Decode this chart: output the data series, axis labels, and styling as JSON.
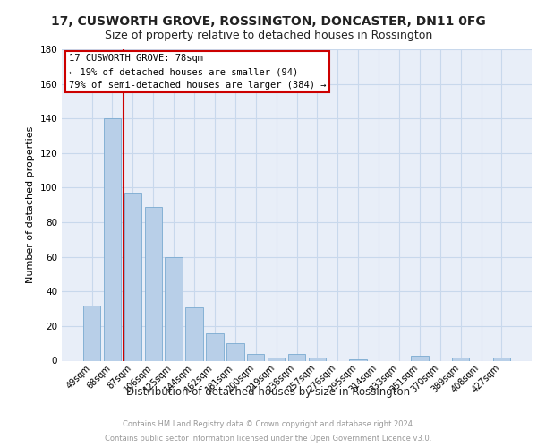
{
  "title": "17, CUSWORTH GROVE, ROSSINGTON, DONCASTER, DN11 0FG",
  "subtitle": "Size of property relative to detached houses in Rossington",
  "xlabel": "Distribution of detached houses by size in Rossington",
  "ylabel": "Number of detached properties",
  "footer_line1": "Contains HM Land Registry data © Crown copyright and database right 2024.",
  "footer_line2": "Contains public sector information licensed under the Open Government Licence v3.0.",
  "bar_labels": [
    "49sqm",
    "68sqm",
    "87sqm",
    "106sqm",
    "125sqm",
    "144sqm",
    "162sqm",
    "181sqm",
    "200sqm",
    "219sqm",
    "238sqm",
    "257sqm",
    "276sqm",
    "295sqm",
    "314sqm",
    "333sqm",
    "351sqm",
    "370sqm",
    "389sqm",
    "408sqm",
    "427sqm"
  ],
  "bar_values": [
    32,
    140,
    97,
    89,
    60,
    31,
    16,
    10,
    4,
    2,
    4,
    2,
    0,
    1,
    0,
    0,
    3,
    0,
    2,
    0,
    2
  ],
  "bar_color": "#b8cfe8",
  "bar_edge_color": "#7aaad0",
  "bar_width": 0.85,
  "property_label": "17 CUSWORTH GROVE: 78sqm",
  "annotation_line1": "← 19% of detached houses are smaller (94)",
  "annotation_line2": "79% of semi-detached houses are larger (384) →",
  "red_line_color": "#cc0000",
  "annotation_box_color": "#cc0000",
  "ylim": [
    0,
    180
  ],
  "yticks": [
    0,
    20,
    40,
    60,
    80,
    100,
    120,
    140,
    160,
    180
  ],
  "grid_color": "#c8d8ec",
  "background_color": "#e8eef8",
  "title_fontsize": 10,
  "subtitle_fontsize": 9,
  "ylabel_fontsize": 8,
  "xlabel_fontsize": 8.5,
  "tick_fontsize": 7,
  "footer_fontsize": 6,
  "annotation_fontsize": 7.5
}
